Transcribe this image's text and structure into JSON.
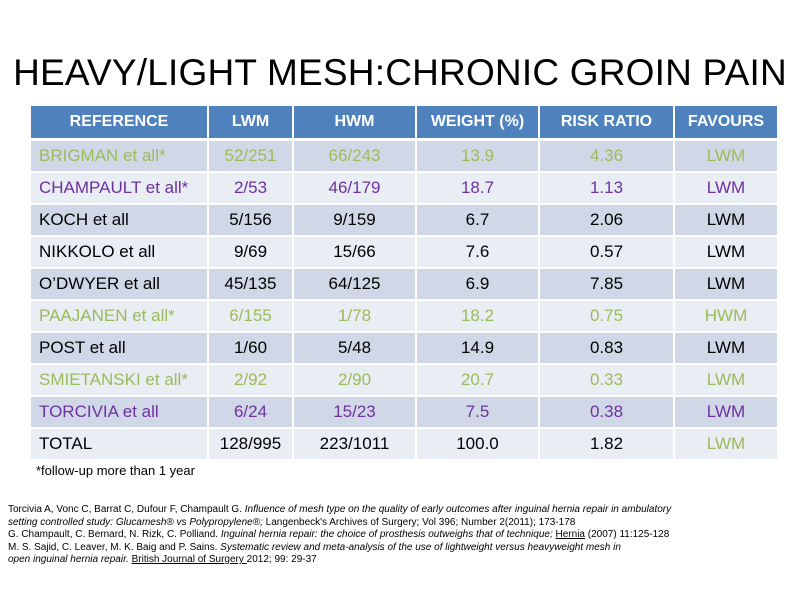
{
  "title": "HEAVY/LIGHT MESH:CHRONIC GROIN PAIN",
  "colors": {
    "header_bg": "#4f81bd",
    "row_odd": "#d0d8e8",
    "row_even": "#e9edf4",
    "green": "#9bbb59",
    "purple": "#7030a0"
  },
  "table": {
    "headers": [
      "REFERENCE",
      "LWM",
      "HWM",
      "WEIGHT (%)",
      "RISK RATIO",
      "FAVOURS"
    ],
    "rows": [
      {
        "color": "green",
        "cells": [
          "BRIGMAN et all*",
          "52/251",
          "66/243",
          "13.9",
          "4.36",
          "LWM"
        ]
      },
      {
        "color": "purple",
        "cells": [
          "CHAMPAULT et all*",
          "2/53",
          "46/179",
          "18.7",
          "1.13",
          "LWM"
        ]
      },
      {
        "color": "black",
        "cells": [
          "KOCH et all",
          "5/156",
          "9/159",
          "6.7",
          "2.06",
          "LWM"
        ]
      },
      {
        "color": "black",
        "cells": [
          "NIKKOLO et all",
          "9/69",
          "15/66",
          "7.6",
          "0.57",
          "LWM"
        ]
      },
      {
        "color": "black",
        "cells": [
          "O’DWYER et all",
          "45/135",
          "64/125",
          "6.9",
          "7.85",
          "LWM"
        ]
      },
      {
        "color": "green",
        "cells": [
          "PAAJANEN et all*",
          "6/155",
          "1/78",
          "18.2",
          "0.75",
          "HWM"
        ]
      },
      {
        "color": "black",
        "cells": [
          "POST et all",
          "1/60",
          "5/48",
          "14.9",
          "0.83",
          "LWM"
        ]
      },
      {
        "color": "green",
        "cells": [
          "SMIETANSKI et all*",
          "2/92",
          "2/90",
          "20.7",
          "0.33",
          "LWM"
        ]
      },
      {
        "color": "purple",
        "cells": [
          "TORCIVIA et all",
          "6/24",
          "15/23",
          "7.5",
          "0.38",
          "LWM"
        ]
      },
      {
        "color": "black",
        "cells": [
          "TOTAL",
          "128/995",
          "223/1011",
          "100.0",
          "1.82",
          "LWM"
        ],
        "last_cell_color": "green"
      }
    ]
  },
  "footnote": "*follow-up more  than 1 year",
  "references": {
    "r1_l1_a": "Torcivia A, Vonc C, Barrat C, Dufour F, Champault G. ",
    "r1_l1_b": "Influence of mesh type on the quality of early outcomes after inguinal hernia repair in ambulatory",
    "r1_l2_a": "setting controlled study: Glucamesh® vs Polypropylene®;",
    "r1_l2_b": " Langenbeck's Archives of Surgery; Vol 396; Number 2(2011); 173-178",
    "r2_a": "G. Champault, C. Bernard, N. Rizk, C. Polliand. ",
    "r2_b": "Inguinal hernia repair:  the choice of prosthesis outweighs that of technique;",
    "r2_c": " ",
    "r2_d": "Hernia",
    "r2_e": " (2007) 11:125-128",
    "r3_l1_a": "M. S. Sajid, C. Leaver, M. K. Baig and P. Sains. ",
    "r3_l1_b": "Systematic review and meta-analysis of the use of lightweight versus heavyweight mesh in",
    "r3_l2_a": "open inguinal hernia repair.",
    "r3_l2_b": " ",
    "r3_l2_c": "British Journal of Surgery ",
    "r3_l2_d": "2012; 99: 29-37"
  }
}
